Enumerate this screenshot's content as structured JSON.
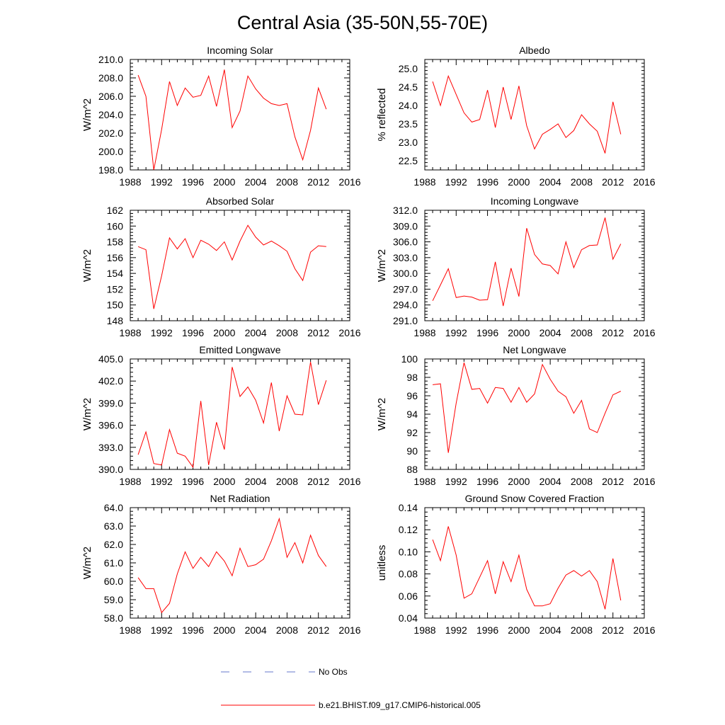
{
  "page_title": "Central Asia (35-50N,55-70E)",
  "legend": {
    "items": [
      {
        "label": "No Obs",
        "color": "#6677cc",
        "dash": true
      },
      {
        "label": "b.e21.BHIST.f09_g17.CMIP6-historical.005",
        "color": "#ff0000",
        "dash": false
      }
    ]
  },
  "chart_data": [
    {
      "type": "line",
      "title": "Incoming Solar",
      "ylabel": "W/m^2",
      "xlim": [
        1988,
        2016
      ],
      "ylim": [
        198,
        210
      ],
      "xticks": [
        1988,
        1992,
        1996,
        2000,
        2004,
        2008,
        2012,
        2016
      ],
      "yticks": [
        198,
        200,
        202,
        204,
        206,
        208,
        210
      ],
      "yticks_labels": [
        "198.0",
        "200.0",
        "202.0",
        "204.0",
        "206.0",
        "208.0",
        "210.0"
      ],
      "grid": false,
      "series": [
        {
          "name": "b.e21.BHIST.f09_g17.CMIP6-historical.005",
          "color": "#ff0000",
          "x": [
            1989,
            1990,
            1991,
            1992,
            1993,
            1994,
            1995,
            1996,
            1997,
            1998,
            1999,
            2000,
            2001,
            2002,
            2003,
            2004,
            2005,
            2006,
            2007,
            2008,
            2009,
            2010,
            2011,
            2012,
            2013
          ],
          "y": [
            208.3,
            206.0,
            198.0,
            202.4,
            207.6,
            205.0,
            206.9,
            205.9,
            206.1,
            208.2,
            204.9,
            208.9,
            202.6,
            204.4,
            208.2,
            206.8,
            205.8,
            205.2,
            205.0,
            205.2,
            201.6,
            199.1,
            202.3,
            206.9,
            204.6
          ]
        }
      ]
    },
    {
      "type": "line",
      "title": "Albedo",
      "ylabel": "% reflected",
      "xlim": [
        1988,
        2016
      ],
      "ylim": [
        22.25,
        25.25
      ],
      "xticks": [
        1988,
        1992,
        1996,
        2000,
        2004,
        2008,
        2012,
        2016
      ],
      "yticks": [
        22.5,
        23.0,
        23.5,
        24.0,
        24.5,
        25.0
      ],
      "yticks_labels": [
        "22.5",
        "23.0",
        "23.5",
        "24.0",
        "24.5",
        "25.0"
      ],
      "grid": false,
      "series": [
        {
          "name": "b.e21.BHIST.f09_g17.CMIP6-historical.005",
          "color": "#ff0000",
          "x": [
            1989,
            1990,
            1991,
            1992,
            1993,
            1994,
            1995,
            1996,
            1997,
            1998,
            1999,
            2000,
            2001,
            2002,
            2003,
            2004,
            2005,
            2006,
            2007,
            2008,
            2009,
            2010,
            2011,
            2012,
            2013
          ],
          "y": [
            24.65,
            24.0,
            24.8,
            24.3,
            23.8,
            23.55,
            23.62,
            24.42,
            23.4,
            24.5,
            23.62,
            24.53,
            23.45,
            22.82,
            23.22,
            23.35,
            23.5,
            23.13,
            23.32,
            23.75,
            23.5,
            23.3,
            22.7,
            24.1,
            23.22
          ]
        }
      ]
    },
    {
      "type": "line",
      "title": "Absorbed Solar",
      "ylabel": "W/m^2",
      "xlim": [
        1988,
        2016
      ],
      "ylim": [
        148,
        162
      ],
      "xticks": [
        1988,
        1992,
        1996,
        2000,
        2004,
        2008,
        2012,
        2016
      ],
      "yticks": [
        148,
        150,
        152,
        154,
        156,
        158,
        160,
        162
      ],
      "yticks_labels": [
        "148",
        "150",
        "152",
        "154",
        "156",
        "158",
        "160",
        "162"
      ],
      "grid": false,
      "series": [
        {
          "name": "b.e21.BHIST.f09_g17.CMIP6-historical.005",
          "color": "#ff0000",
          "x": [
            1989,
            1990,
            1991,
            1992,
            1993,
            1994,
            1995,
            1996,
            1997,
            1998,
            1999,
            2000,
            2001,
            2002,
            2003,
            2004,
            2005,
            2006,
            2007,
            2008,
            2009,
            2010,
            2011,
            2012,
            2013
          ],
          "y": [
            157.4,
            157.0,
            149.5,
            153.7,
            158.5,
            157.1,
            158.4,
            156.0,
            158.2,
            157.7,
            156.9,
            158.0,
            155.7,
            158.1,
            160.1,
            158.6,
            157.6,
            158.1,
            157.5,
            156.8,
            154.6,
            153.1,
            156.7,
            157.5,
            157.4
          ]
        }
      ]
    },
    {
      "type": "line",
      "title": "Incoming Longwave",
      "ylabel": "W/m^2",
      "xlim": [
        1988,
        2016
      ],
      "ylim": [
        291,
        312
      ],
      "xticks": [
        1988,
        1992,
        1996,
        2000,
        2004,
        2008,
        2012,
        2016
      ],
      "yticks": [
        291,
        294,
        297,
        300,
        303,
        306,
        309,
        312
      ],
      "yticks_labels": [
        "291.0",
        "294.0",
        "297.0",
        "300.0",
        "303.0",
        "306.0",
        "309.0",
        "312.0"
      ],
      "grid": false,
      "series": [
        {
          "name": "b.e21.BHIST.f09_g17.CMIP6-historical.005",
          "color": "#ff0000",
          "x": [
            1989,
            1990,
            1991,
            1992,
            1993,
            1994,
            1995,
            1996,
            1997,
            1998,
            1999,
            2000,
            2001,
            2002,
            2003,
            2004,
            2005,
            2006,
            2007,
            2008,
            2009,
            2010,
            2011,
            2012,
            2013
          ],
          "y": [
            294.8,
            297.8,
            300.9,
            295.4,
            295.7,
            295.5,
            294.9,
            295.0,
            302.2,
            293.8,
            301.0,
            295.6,
            308.6,
            303.6,
            301.8,
            301.5,
            299.9,
            306.0,
            301.1,
            304.5,
            305.3,
            305.4,
            310.6,
            302.7,
            305.6
          ]
        }
      ]
    },
    {
      "type": "line",
      "title": "Emitted Longwave",
      "ylabel": "W/m^2",
      "xlim": [
        1988,
        2016
      ],
      "ylim": [
        390,
        405
      ],
      "xticks": [
        1988,
        1992,
        1996,
        2000,
        2004,
        2008,
        2012,
        2016
      ],
      "yticks": [
        390,
        393,
        396,
        399,
        402,
        405
      ],
      "yticks_labels": [
        "390.0",
        "393.0",
        "396.0",
        "399.0",
        "402.0",
        "405.0"
      ],
      "grid": false,
      "series": [
        {
          "name": "b.e21.BHIST.f09_g17.CMIP6-historical.005",
          "color": "#ff0000",
          "x": [
            1989,
            1990,
            1991,
            1992,
            1993,
            1994,
            1995,
            1996,
            1997,
            1998,
            1999,
            2000,
            2001,
            2002,
            2003,
            2004,
            2005,
            2006,
            2007,
            2008,
            2009,
            2010,
            2011,
            2012,
            2013
          ],
          "y": [
            392.0,
            395.1,
            390.8,
            390.6,
            395.4,
            392.2,
            391.8,
            390.3,
            399.3,
            390.6,
            396.4,
            392.7,
            403.9,
            399.9,
            401.2,
            399.4,
            396.3,
            401.8,
            395.2,
            400.0,
            397.5,
            397.4,
            404.6,
            398.8,
            402.1
          ]
        }
      ]
    },
    {
      "type": "line",
      "title": "Net Longwave",
      "ylabel": "W/m^2",
      "xlim": [
        1988,
        2016
      ],
      "ylim": [
        88,
        100
      ],
      "xticks": [
        1988,
        1992,
        1996,
        2000,
        2004,
        2008,
        2012,
        2016
      ],
      "yticks": [
        88,
        90,
        92,
        94,
        96,
        98,
        100
      ],
      "yticks_labels": [
        "88",
        "90",
        "92",
        "94",
        "96",
        "98",
        "100"
      ],
      "grid": false,
      "series": [
        {
          "name": "b.e21.BHIST.f09_g17.CMIP6-historical.005",
          "color": "#ff0000",
          "x": [
            1989,
            1990,
            1991,
            1992,
            1993,
            1994,
            1995,
            1996,
            1997,
            1998,
            1999,
            2000,
            2001,
            2002,
            2003,
            2004,
            2005,
            2006,
            2007,
            2008,
            2009,
            2010,
            2011,
            2012,
            2013
          ],
          "y": [
            97.2,
            97.3,
            89.8,
            95.2,
            99.6,
            96.7,
            96.8,
            95.2,
            96.9,
            96.8,
            95.3,
            96.9,
            95.3,
            96.2,
            99.4,
            97.8,
            96.5,
            95.9,
            94.1,
            95.5,
            92.4,
            92.0,
            94.1,
            96.1,
            96.5
          ]
        }
      ]
    },
    {
      "type": "line",
      "title": "Net Radiation",
      "ylabel": "W/m^2",
      "xlim": [
        1988,
        2016
      ],
      "ylim": [
        58,
        64
      ],
      "xticks": [
        1988,
        1992,
        1996,
        2000,
        2004,
        2008,
        2012,
        2016
      ],
      "yticks": [
        58,
        59,
        60,
        61,
        62,
        63,
        64
      ],
      "yticks_labels": [
        "58.0",
        "59.0",
        "60.0",
        "61.0",
        "62.0",
        "63.0",
        "64.0"
      ],
      "grid": false,
      "series": [
        {
          "name": "b.e21.BHIST.f09_g17.CMIP6-historical.005",
          "color": "#ff0000",
          "x": [
            1989,
            1990,
            1991,
            1992,
            1993,
            1994,
            1995,
            1996,
            1997,
            1998,
            1999,
            2000,
            2001,
            2002,
            2003,
            2004,
            2005,
            2006,
            2007,
            2008,
            2009,
            2010,
            2011,
            2012,
            2013
          ],
          "y": [
            60.2,
            59.6,
            59.6,
            58.3,
            58.8,
            60.4,
            61.6,
            60.7,
            61.3,
            60.8,
            61.6,
            61.1,
            60.3,
            61.8,
            60.8,
            60.9,
            61.2,
            62.2,
            63.4,
            61.3,
            62.1,
            61.0,
            62.5,
            61.4,
            60.8
          ]
        }
      ]
    },
    {
      "type": "line",
      "title": "Ground Snow Covered Fraction",
      "ylabel": "unitless",
      "xlim": [
        1988,
        2016
      ],
      "ylim": [
        0.04,
        0.14
      ],
      "xticks": [
        1988,
        1992,
        1996,
        2000,
        2004,
        2008,
        2012,
        2016
      ],
      "yticks": [
        0.04,
        0.06,
        0.08,
        0.1,
        0.12,
        0.14
      ],
      "yticks_labels": [
        "0.04",
        "0.06",
        "0.08",
        "0.10",
        "0.12",
        "0.14"
      ],
      "grid": false,
      "series": [
        {
          "name": "b.e21.BHIST.f09_g17.CMIP6-historical.005",
          "color": "#ff0000",
          "x": [
            1989,
            1990,
            1991,
            1992,
            1993,
            1994,
            1995,
            1996,
            1997,
            1998,
            1999,
            2000,
            2001,
            2002,
            2003,
            2004,
            2005,
            2006,
            2007,
            2008,
            2009,
            2010,
            2011,
            2012,
            2013
          ],
          "y": [
            0.111,
            0.092,
            0.123,
            0.097,
            0.058,
            0.062,
            0.077,
            0.092,
            0.062,
            0.091,
            0.073,
            0.097,
            0.066,
            0.051,
            0.051,
            0.053,
            0.067,
            0.079,
            0.083,
            0.078,
            0.083,
            0.073,
            0.048,
            0.094,
            0.056
          ]
        }
      ]
    }
  ]
}
